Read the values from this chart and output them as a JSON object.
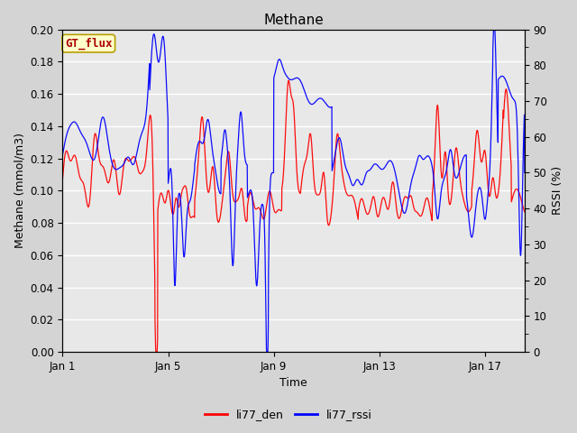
{
  "title": "Methane",
  "xlabel": "Time",
  "ylabel_left": "Methane (mmol/m3)",
  "ylabel_right": "RSSI (%)",
  "annotation_text": "GT_flux",
  "legend_labels": [
    "li77_den",
    "li77_rssi"
  ],
  "line_colors": [
    "red",
    "blue"
  ],
  "ylim_left": [
    0.0,
    0.2
  ],
  "ylim_right": [
    0,
    90
  ],
  "yticks_left": [
    0.0,
    0.02,
    0.04,
    0.06,
    0.08,
    0.1,
    0.12,
    0.14,
    0.16,
    0.18,
    0.2
  ],
  "yticks_right": [
    0,
    10,
    20,
    30,
    40,
    50,
    60,
    70,
    80,
    90
  ],
  "xtick_labels": [
    "Jan 1",
    "Jan 5",
    "Jan 9",
    "Jan 13",
    "Jan 17"
  ],
  "xtick_positions": [
    0,
    4,
    8,
    12,
    16
  ],
  "xlim": [
    0,
    17.5
  ],
  "background_color": "#d4d4d4",
  "plot_bg_color": "#e8e8e8",
  "annotation_bg": "#ffffcc",
  "annotation_border": "#b8a000",
  "annotation_text_color": "#aa0000",
  "title_fontsize": 11,
  "label_fontsize": 9,
  "tick_fontsize": 8.5,
  "legend_fontsize": 9
}
